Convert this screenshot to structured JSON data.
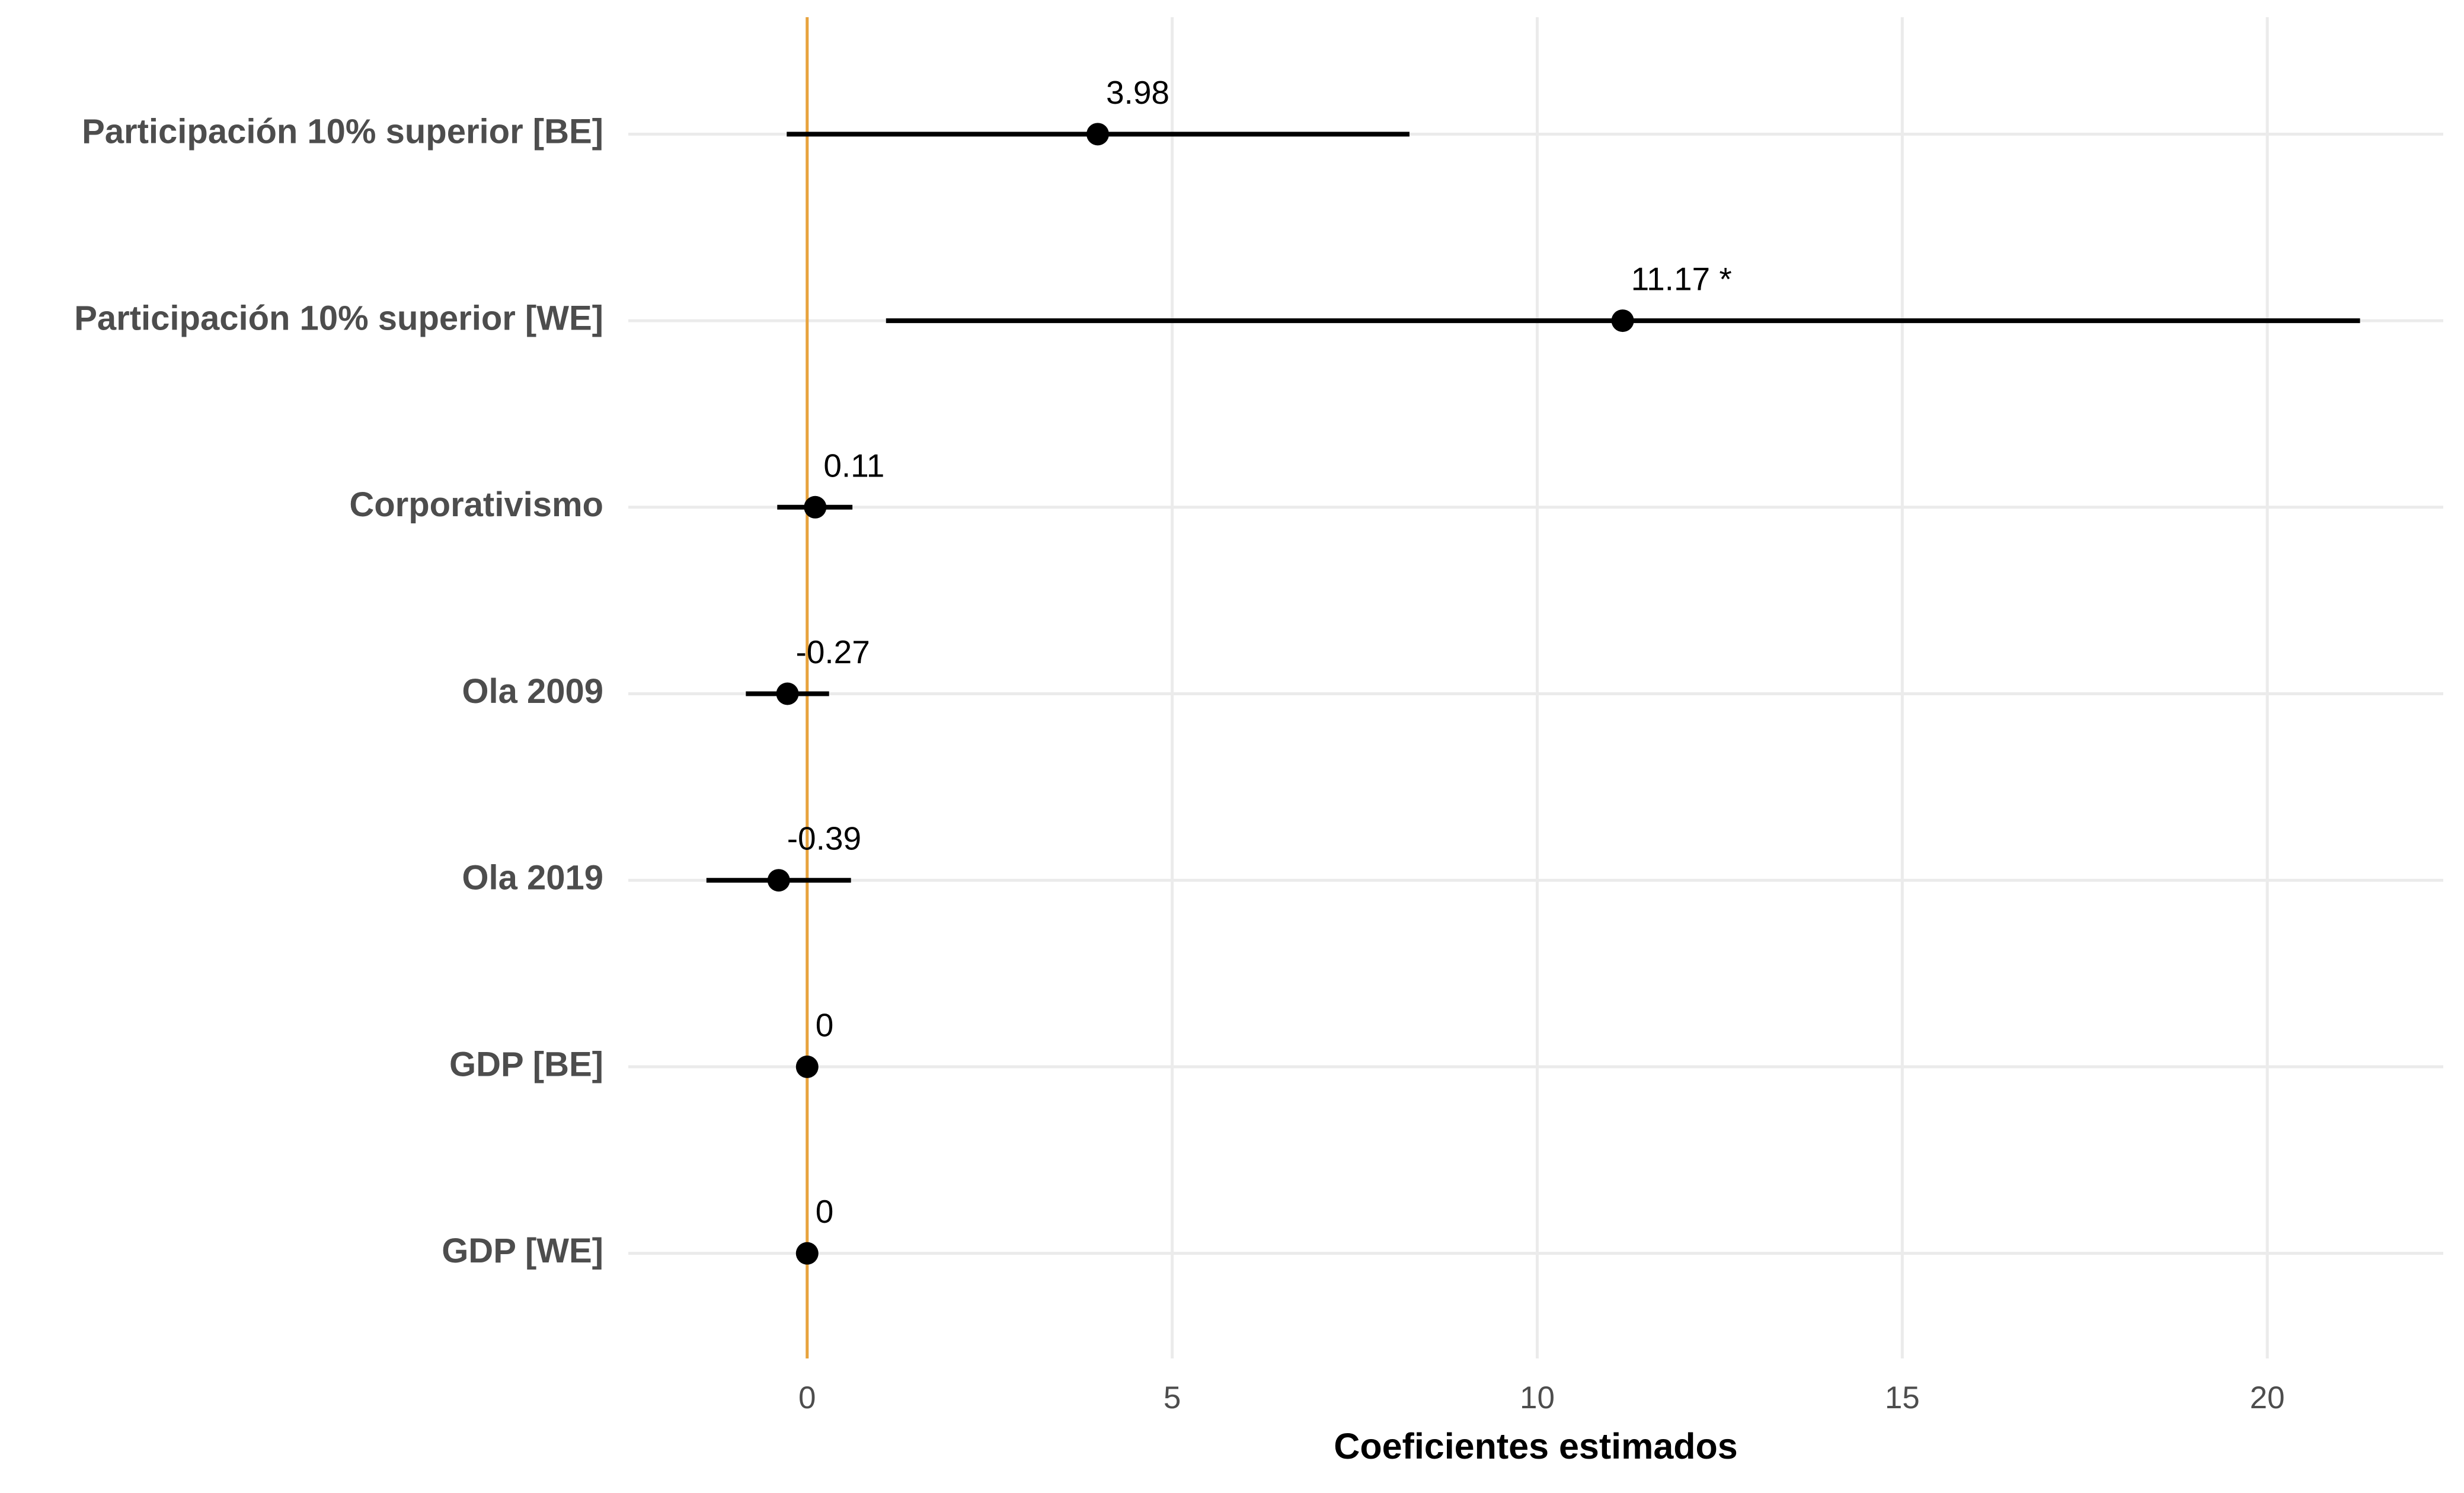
{
  "chart_data": {
    "type": "coefplot",
    "x_label": "Coeficientes estimados",
    "categories": [
      "Participación 10% superior [BE]",
      "Participación 10% superior [WE]",
      "Corporativismo",
      "Ola 2009",
      "Ola 2019",
      "GDP [BE]",
      "GDP [WE]"
    ],
    "values": [
      3.98,
      11.17,
      0.11,
      -0.27,
      -0.39,
      0,
      0
    ],
    "value_labels": [
      "3.98",
      "11.17 *",
      "0.11",
      "-0.27",
      "-0.39",
      "0",
      "0"
    ],
    "low": [
      -0.28,
      1.08,
      -0.41,
      -0.84,
      -1.38,
      0,
      0
    ],
    "high": [
      8.25,
      21.27,
      0.62,
      0.3,
      0.6,
      0,
      0
    ],
    "color": "#000000",
    "reference_line": {
      "value": 0,
      "color": "#E8A33D"
    },
    "xlim": [
      -2.45,
      22.41
    ],
    "xticks": [
      0,
      5,
      10,
      15,
      20
    ],
    "grid": true
  }
}
